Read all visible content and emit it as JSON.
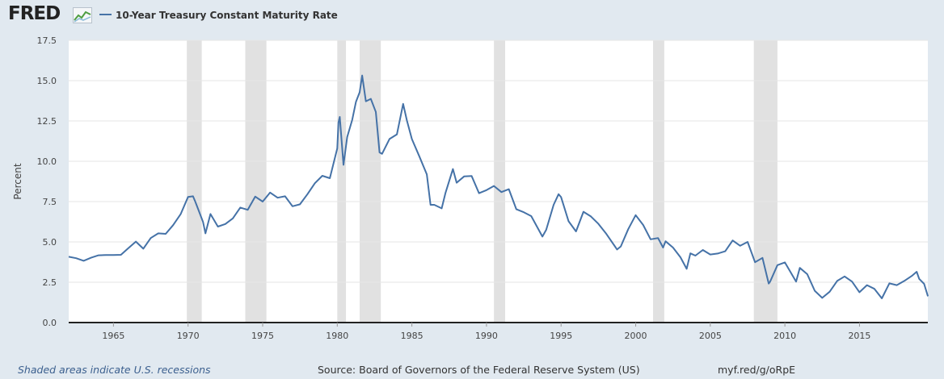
{
  "header": {
    "logo_text": "FRED",
    "logo_icon": "line-graph-icon",
    "legend_label": "10-Year Treasury Constant Maturity Rate"
  },
  "colors": {
    "background": "#e1e9f0",
    "plot_background": "#ffffff",
    "series": "#4572a7",
    "recession": "#e1e1e1",
    "gridline": "#e6e6e6"
  },
  "chart_data": {
    "type": "line",
    "title": "10-Year Treasury Constant Maturity Rate",
    "xlabel": "",
    "ylabel": "Percent",
    "xlim": [
      1962.0,
      2019.58
    ],
    "ylim": [
      0,
      17.5
    ],
    "y_ticks": [
      0.0,
      2.5,
      5.0,
      7.5,
      10.0,
      12.5,
      15.0,
      17.5
    ],
    "x_ticks": [
      1965,
      1970,
      1975,
      1980,
      1985,
      1990,
      1995,
      2000,
      2005,
      2010,
      2015
    ],
    "grid": "horizontal",
    "legend_position": "top-left",
    "recessions": [
      [
        "1969-12",
        "1970-11"
      ],
      [
        "1973-11",
        "1975-03"
      ],
      [
        "1980-01",
        "1980-07"
      ],
      [
        "1981-07",
        "1982-11"
      ],
      [
        "1990-07",
        "1991-03"
      ],
      [
        "2001-03",
        "2001-11"
      ],
      [
        "2007-12",
        "2009-06"
      ]
    ],
    "series": [
      {
        "x": [
          "1962-01",
          "1962-07",
          "1963-01",
          "1963-07",
          "1964-01",
          "1964-07",
          "1965-01",
          "1965-07",
          "1966-01",
          "1966-07",
          "1967-01",
          "1967-07",
          "1968-01",
          "1968-07",
          "1969-01",
          "1969-07",
          "1970-01",
          "1970-05",
          "1970-07",
          "1971-01",
          "1971-03",
          "1971-07",
          "1972-01",
          "1972-07",
          "1973-01",
          "1973-07",
          "1974-01",
          "1974-07",
          "1975-01",
          "1975-07",
          "1976-01",
          "1976-07",
          "1977-01",
          "1977-07",
          "1978-01",
          "1978-07",
          "1979-01",
          "1979-07",
          "1980-01",
          "1980-02",
          "1980-03",
          "1980-06",
          "1980-09",
          "1981-01",
          "1981-04",
          "1981-07",
          "1981-09",
          "1981-12",
          "1982-04",
          "1982-08",
          "1982-11",
          "1983-01",
          "1983-07",
          "1984-01",
          "1984-06",
          "1984-09",
          "1985-01",
          "1985-07",
          "1986-01",
          "1986-04",
          "1986-07",
          "1987-01",
          "1987-04",
          "1987-10",
          "1988-01",
          "1988-07",
          "1989-01",
          "1989-07",
          "1990-01",
          "1990-07",
          "1991-01",
          "1991-07",
          "1992-01",
          "1992-07",
          "1993-01",
          "1993-10",
          "1994-01",
          "1994-07",
          "1994-11",
          "1995-01",
          "1995-07",
          "1996-01",
          "1996-07",
          "1997-01",
          "1997-07",
          "1998-01",
          "1998-10",
          "1999-01",
          "1999-07",
          "2000-01",
          "2000-07",
          "2001-01",
          "2001-07",
          "2001-11",
          "2002-01",
          "2002-07",
          "2003-01",
          "2003-06",
          "2003-09",
          "2004-01",
          "2004-07",
          "2005-01",
          "2005-07",
          "2006-01",
          "2006-07",
          "2007-01",
          "2007-07",
          "2008-01",
          "2008-07",
          "2008-12",
          "2009-01",
          "2009-07",
          "2010-01",
          "2010-10",
          "2011-01",
          "2011-07",
          "2012-01",
          "2012-07",
          "2013-01",
          "2013-07",
          "2014-01",
          "2014-07",
          "2015-01",
          "2015-07",
          "2016-01",
          "2016-07",
          "2017-01",
          "2017-07",
          "2018-01",
          "2018-07",
          "2018-11",
          "2019-01",
          "2019-05",
          "2019-08"
        ],
        "values": [
          4.08,
          3.99,
          3.83,
          4.02,
          4.17,
          4.19,
          4.19,
          4.2,
          4.61,
          5.02,
          4.58,
          5.24,
          5.53,
          5.5,
          6.04,
          6.72,
          7.79,
          7.83,
          7.46,
          6.24,
          5.53,
          6.73,
          5.95,
          6.11,
          6.46,
          7.13,
          6.99,
          7.81,
          7.5,
          8.06,
          7.74,
          7.83,
          7.21,
          7.33,
          7.96,
          8.64,
          9.1,
          8.95,
          10.8,
          12.41,
          12.75,
          9.78,
          11.51,
          12.57,
          13.68,
          14.28,
          15.32,
          13.72,
          13.87,
          13.06,
          10.55,
          10.46,
          11.38,
          11.67,
          13.56,
          12.52,
          11.38,
          10.31,
          9.19,
          7.3,
          7.3,
          7.08,
          8.02,
          9.52,
          8.67,
          9.06,
          9.09,
          8.02,
          8.21,
          8.47,
          8.09,
          8.27,
          7.03,
          6.84,
          6.6,
          5.33,
          5.75,
          7.3,
          7.96,
          7.78,
          6.28,
          5.65,
          6.87,
          6.58,
          6.12,
          5.54,
          4.53,
          4.72,
          5.79,
          6.66,
          6.05,
          5.16,
          5.24,
          4.65,
          5.04,
          4.65,
          4.05,
          3.33,
          4.29,
          4.15,
          4.5,
          4.22,
          4.28,
          4.42,
          5.09,
          4.76,
          5.0,
          3.74,
          4.01,
          2.42,
          2.52,
          3.56,
          3.73,
          2.54,
          3.39,
          3.0,
          1.97,
          1.53,
          1.91,
          2.58,
          2.86,
          2.54,
          1.88,
          2.32,
          2.09,
          1.5,
          2.43,
          2.32,
          2.58,
          2.89,
          3.15,
          2.71,
          2.4,
          1.63
        ]
      }
    ]
  },
  "footer": {
    "recession_note": "Shaded areas indicate U.S. recessions",
    "source": "Source: Board of Governors of the Federal Reserve System (US)",
    "short_url": "myf.red/g/oRpE"
  }
}
